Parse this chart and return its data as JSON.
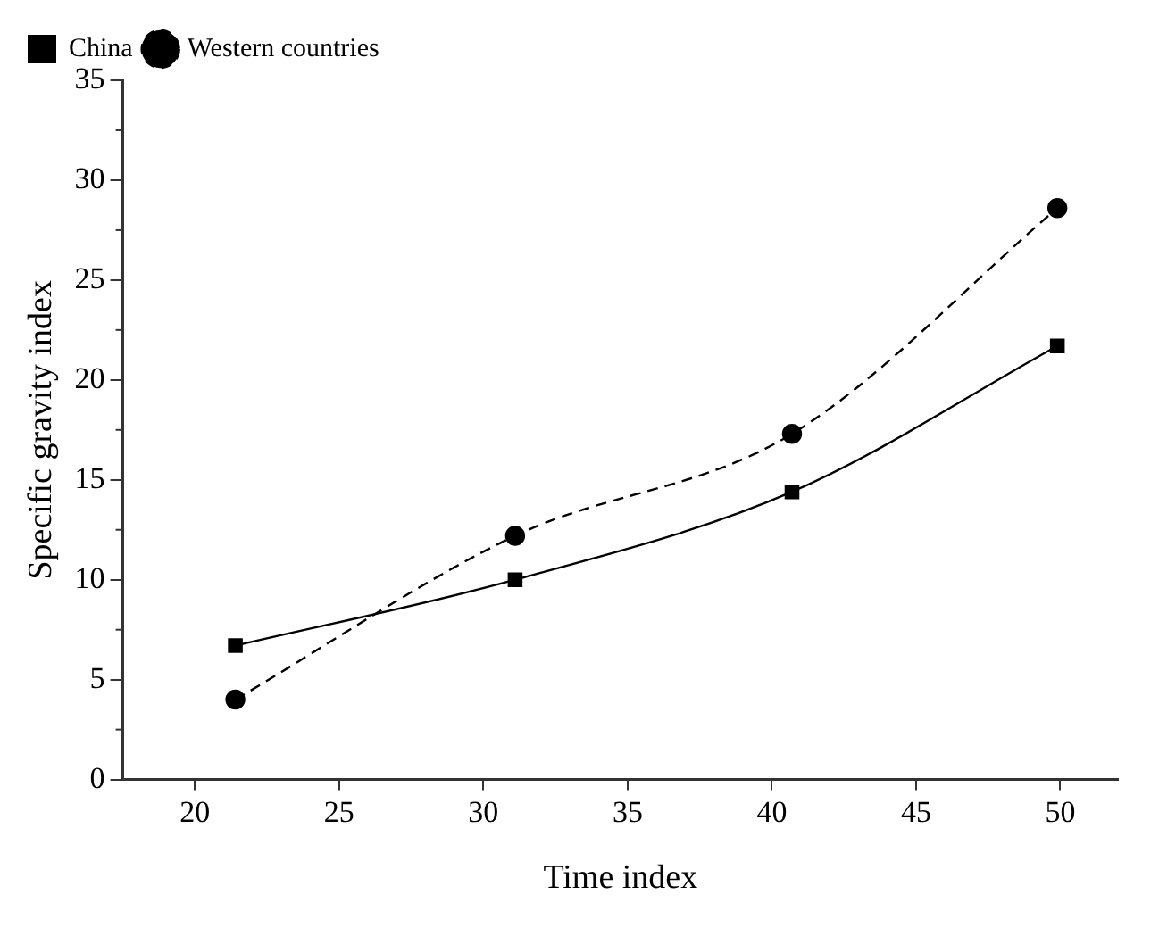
{
  "chart_data": {
    "type": "line",
    "xlabel": "Time index",
    "ylabel": "Specific gravity index",
    "xlim": [
      17.5,
      52
    ],
    "xticks": [
      20,
      25,
      30,
      35,
      40,
      45,
      50
    ],
    "ylim": [
      0,
      35
    ],
    "yticks": [
      0,
      5,
      10,
      15,
      20,
      25,
      30,
      35
    ],
    "grid": false,
    "legend": "top left",
    "series": [
      {
        "name": "China",
        "color": "#000000",
        "x": [
          21.4,
          31.1,
          40.7,
          49.9
        ],
        "values": [
          6.7,
          10.0,
          14.4,
          21.7
        ],
        "marker": "square",
        "line_style": "solid"
      },
      {
        "name": "Western countries",
        "color": "#000000",
        "x": [
          21.4,
          31.1,
          40.7,
          49.9
        ],
        "values": [
          4.0,
          12.2,
          17.3,
          28.6
        ],
        "marker": "circle",
        "line_style": "dashed"
      }
    ]
  }
}
